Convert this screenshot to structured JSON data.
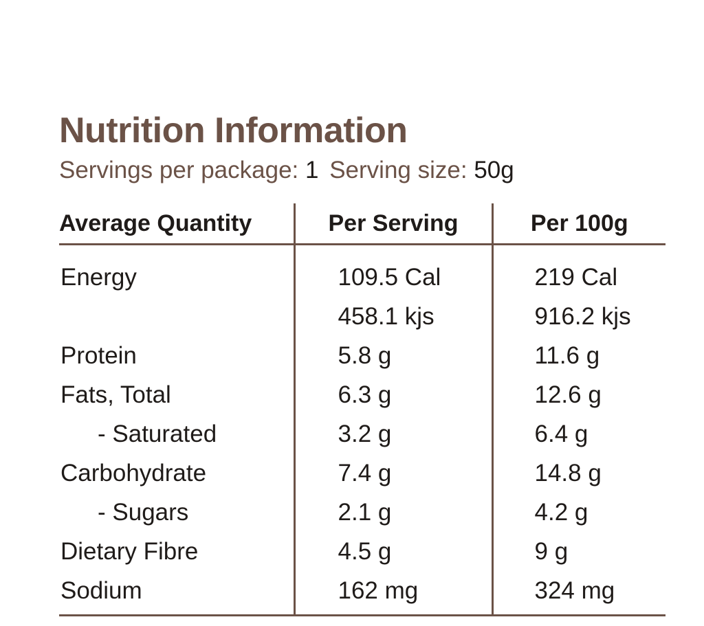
{
  "label": {
    "title": "Nutrition Information",
    "servings_label": "Servings per package:",
    "servings_value": "1",
    "serving_size_label": "Serving size:",
    "serving_size_value": "50g"
  },
  "table": {
    "headers": [
      "Average Quantity",
      "Per Serving",
      "Per 100g"
    ],
    "rows": [
      {
        "name": "Energy",
        "per_serving": "109.5 Cal",
        "per_100g": "219 Cal"
      },
      {
        "name": "",
        "per_serving": "458.1 kjs",
        "per_100g": "916.2 kjs"
      },
      {
        "name": "Protein",
        "per_serving": "5.8 g",
        "per_100g": "11.6 g"
      },
      {
        "name": "Fats, Total",
        "per_serving": "6.3 g",
        "per_100g": "12.6 g"
      },
      {
        "name": "- Saturated",
        "per_serving": "3.2 g",
        "per_100g": "6.4 g"
      },
      {
        "name": "Carbohydrate",
        "per_serving": "7.4 g",
        "per_100g": "14.8 g"
      },
      {
        "name": "- Sugars",
        "per_serving": "2.1 g",
        "per_100g": "4.2 g"
      },
      {
        "name": "Dietary Fibre",
        "per_serving": "4.5 g",
        "per_100g": "9 g"
      },
      {
        "name": "Sodium",
        "per_serving": "162 mg",
        "per_100g": "324 mg"
      }
    ]
  },
  "colors": {
    "heading": "#6b5247",
    "text": "#1f1b19",
    "rule": "#6b5247"
  }
}
